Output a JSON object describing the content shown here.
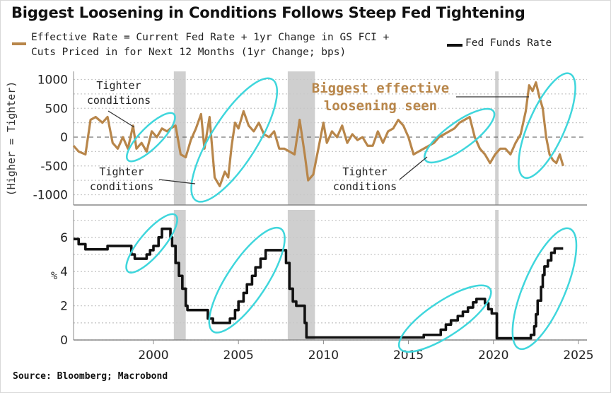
{
  "title": "Biggest Loosening in Conditions Follows Steep Fed Tightening",
  "source": "Source: Bloomberg; Macrobond",
  "colors": {
    "effective_rate": "#b8864a",
    "fed_funds": "#111111",
    "highlight": "#3fd6dc",
    "recession": "#cfcfcf"
  },
  "chart_data": [
    {
      "type": "line",
      "name": "effective-rate-panel",
      "legend": {
        "label_line1": "Effective Rate = Current Fed Rate + 1yr Change in GS FCI +",
        "label_line2": "Cuts Priced in for Next 12 Months (1yr Change; bps)",
        "placement": "top-left"
      },
      "ylabel": "(Higher = Tighter)",
      "ylim": [
        -1200,
        1100
      ],
      "yticks": [
        1000,
        500,
        0,
        -500,
        -1000
      ],
      "xlim": [
        1995.3,
        2025.5
      ],
      "series": [
        {
          "name": "Effective Rate",
          "x": [
            1995.3,
            1995.6,
            1996.0,
            1996.3,
            1996.6,
            1997.0,
            1997.3,
            1997.6,
            1997.9,
            1998.2,
            1998.5,
            1998.8,
            1999.0,
            1999.3,
            1999.6,
            1999.9,
            2000.2,
            2000.5,
            2000.8,
            2001.0,
            2001.3,
            2001.6,
            2001.9,
            2002.2,
            2002.5,
            2002.8,
            2003.0,
            2003.3,
            2003.6,
            2003.9,
            2004.2,
            2004.4,
            2004.6,
            2004.8,
            2005.0,
            2005.3,
            2005.6,
            2005.9,
            2006.2,
            2006.5,
            2006.8,
            2007.1,
            2007.4,
            2007.7,
            2008.0,
            2008.3,
            2008.6,
            2008.9,
            2009.1,
            2009.4,
            2009.7,
            2010.0,
            2010.2,
            2010.5,
            2010.8,
            2011.1,
            2011.4,
            2011.7,
            2012.0,
            2012.3,
            2012.6,
            2012.9,
            2013.2,
            2013.5,
            2013.8,
            2014.1,
            2014.4,
            2014.7,
            2015.0,
            2015.3,
            2015.6,
            2015.9,
            2016.2,
            2016.5,
            2016.8,
            2017.1,
            2017.4,
            2017.7,
            2018.0,
            2018.3,
            2018.6,
            2018.9,
            2019.2,
            2019.5,
            2019.8,
            2020.1,
            2020.4,
            2020.7,
            2021.0,
            2021.3,
            2021.6,
            2021.9,
            2022.1,
            2022.3,
            2022.5,
            2022.7,
            2022.9,
            2023.1,
            2023.3,
            2023.5,
            2023.7,
            2023.9,
            2024.1
          ],
          "values": [
            -150,
            -250,
            -300,
            300,
            350,
            250,
            350,
            -100,
            -200,
            0,
            -200,
            200,
            -200,
            -100,
            -250,
            100,
            0,
            150,
            100,
            150,
            200,
            -300,
            -350,
            -50,
            150,
            400,
            -200,
            350,
            -700,
            -850,
            -600,
            -700,
            -150,
            250,
            150,
            450,
            200,
            100,
            250,
            50,
            0,
            100,
            -200,
            -200,
            -250,
            -300,
            300,
            -300,
            -750,
            -650,
            -200,
            250,
            -100,
            100,
            0,
            200,
            -100,
            50,
            -50,
            0,
            -150,
            -150,
            100,
            -100,
            100,
            150,
            300,
            200,
            0,
            -300,
            -250,
            -200,
            -150,
            -100,
            0,
            50,
            100,
            150,
            250,
            300,
            350,
            0,
            -200,
            -300,
            -450,
            -300,
            -200,
            -200,
            -300,
            -100,
            50,
            450,
            900,
            800,
            950,
            700,
            500,
            0,
            -300,
            -400,
            -450,
            -300,
            -500
          ]
        }
      ],
      "recessions": [
        [
          2001.2,
          2001.9
        ],
        [
          2007.9,
          2009.5
        ],
        [
          2020.1,
          2020.3
        ]
      ],
      "annotations": [
        {
          "text_line1": "Tighter",
          "text_line2": "conditions",
          "near_x": 1998.5,
          "position": "above"
        },
        {
          "text_line1": "Tighter",
          "text_line2": "conditions",
          "near_x": 2003.0,
          "position": "below"
        },
        {
          "text_line1": "Tighter",
          "text_line2": "conditions",
          "near_x": 2015.5,
          "position": "below"
        },
        {
          "text_line1": "Biggest effective",
          "text_line2": "loosening seen",
          "near_x": 2022.5,
          "position": "above",
          "style": "gold-bold"
        }
      ],
      "highlights": [
        {
          "x_range": [
            1998.5,
            2001.2
          ],
          "y_range": [
            -400,
            400
          ]
        },
        {
          "x_range": [
            2002.5,
            2007.0
          ],
          "y_range": [
            -1100,
            1000
          ]
        },
        {
          "x_range": [
            2016.0,
            2020.0
          ],
          "y_range": [
            -400,
            450
          ]
        },
        {
          "x_range": [
            2021.8,
            2024.5
          ],
          "y_range": [
            -700,
            1100
          ]
        }
      ]
    },
    {
      "type": "line",
      "name": "fed-funds-panel",
      "legend": {
        "label": "Fed Funds Rate",
        "placement": "top-right"
      },
      "ylabel": "%",
      "ylim": [
        0,
        7.5
      ],
      "yticks": [
        6,
        4,
        2,
        0
      ],
      "xlim": [
        1995.3,
        2025.5
      ],
      "xticks": [
        2000,
        2005,
        2010,
        2015,
        2020,
        2025
      ],
      "series": [
        {
          "name": "Fed Funds Rate",
          "step": true,
          "x": [
            1995.3,
            1995.6,
            1996.0,
            1996.4,
            1997.3,
            1998.7,
            1998.9,
            1999.1,
            1999.6,
            1999.8,
            2000.0,
            2000.3,
            2000.5,
            2001.0,
            2001.1,
            2001.3,
            2001.5,
            2001.7,
            2001.9,
            2002.0,
            2003.2,
            2003.5,
            2004.0,
            2004.5,
            2004.8,
            2005.0,
            2005.3,
            2005.5,
            2005.8,
            2006.0,
            2006.3,
            2006.6,
            2007.5,
            2007.8,
            2008.0,
            2008.2,
            2008.4,
            2008.9,
            2009.0,
            2015.9,
            2016.9,
            2017.2,
            2017.5,
            2017.9,
            2018.2,
            2018.5,
            2018.8,
            2019.0,
            2019.5,
            2019.7,
            2019.9,
            2020.2,
            2022.2,
            2022.4,
            2022.5,
            2022.6,
            2022.8,
            2022.9,
            2023.0,
            2023.2,
            2023.4,
            2023.6,
            2024.1
          ],
          "values": [
            5.9,
            5.6,
            5.3,
            5.3,
            5.5,
            5.0,
            4.75,
            4.75,
            5.0,
            5.25,
            5.5,
            6.0,
            6.5,
            6.0,
            5.5,
            4.5,
            3.75,
            3.0,
            2.0,
            1.75,
            1.25,
            1.0,
            1.0,
            1.25,
            1.75,
            2.25,
            2.75,
            3.25,
            3.75,
            4.25,
            4.75,
            5.25,
            5.25,
            4.5,
            3.0,
            2.25,
            2.0,
            1.0,
            0.15,
            0.3,
            0.6,
            0.9,
            1.15,
            1.4,
            1.65,
            1.9,
            2.2,
            2.4,
            2.15,
            1.8,
            1.55,
            0.1,
            0.3,
            0.8,
            1.5,
            2.3,
            3.1,
            3.8,
            4.3,
            4.65,
            5.1,
            5.35,
            5.35
          ]
        }
      ],
      "recessions": [
        [
          2001.2,
          2001.9
        ],
        [
          2007.9,
          2009.5
        ],
        [
          2020.1,
          2020.3
        ]
      ],
      "highlights": [
        {
          "x_range": [
            1998.5,
            2001.3
          ],
          "y_range": [
            4.0,
            7.3
          ]
        },
        {
          "x_range": [
            2003.5,
            2007.5
          ],
          "y_range": [
            0.5,
            6.5
          ]
        },
        {
          "x_range": [
            2014.5,
            2019.8
          ],
          "y_range": [
            -0.5,
            3.0
          ]
        },
        {
          "x_range": [
            2021.5,
            2024.5
          ],
          "y_range": [
            -0.5,
            6.5
          ]
        }
      ]
    }
  ]
}
